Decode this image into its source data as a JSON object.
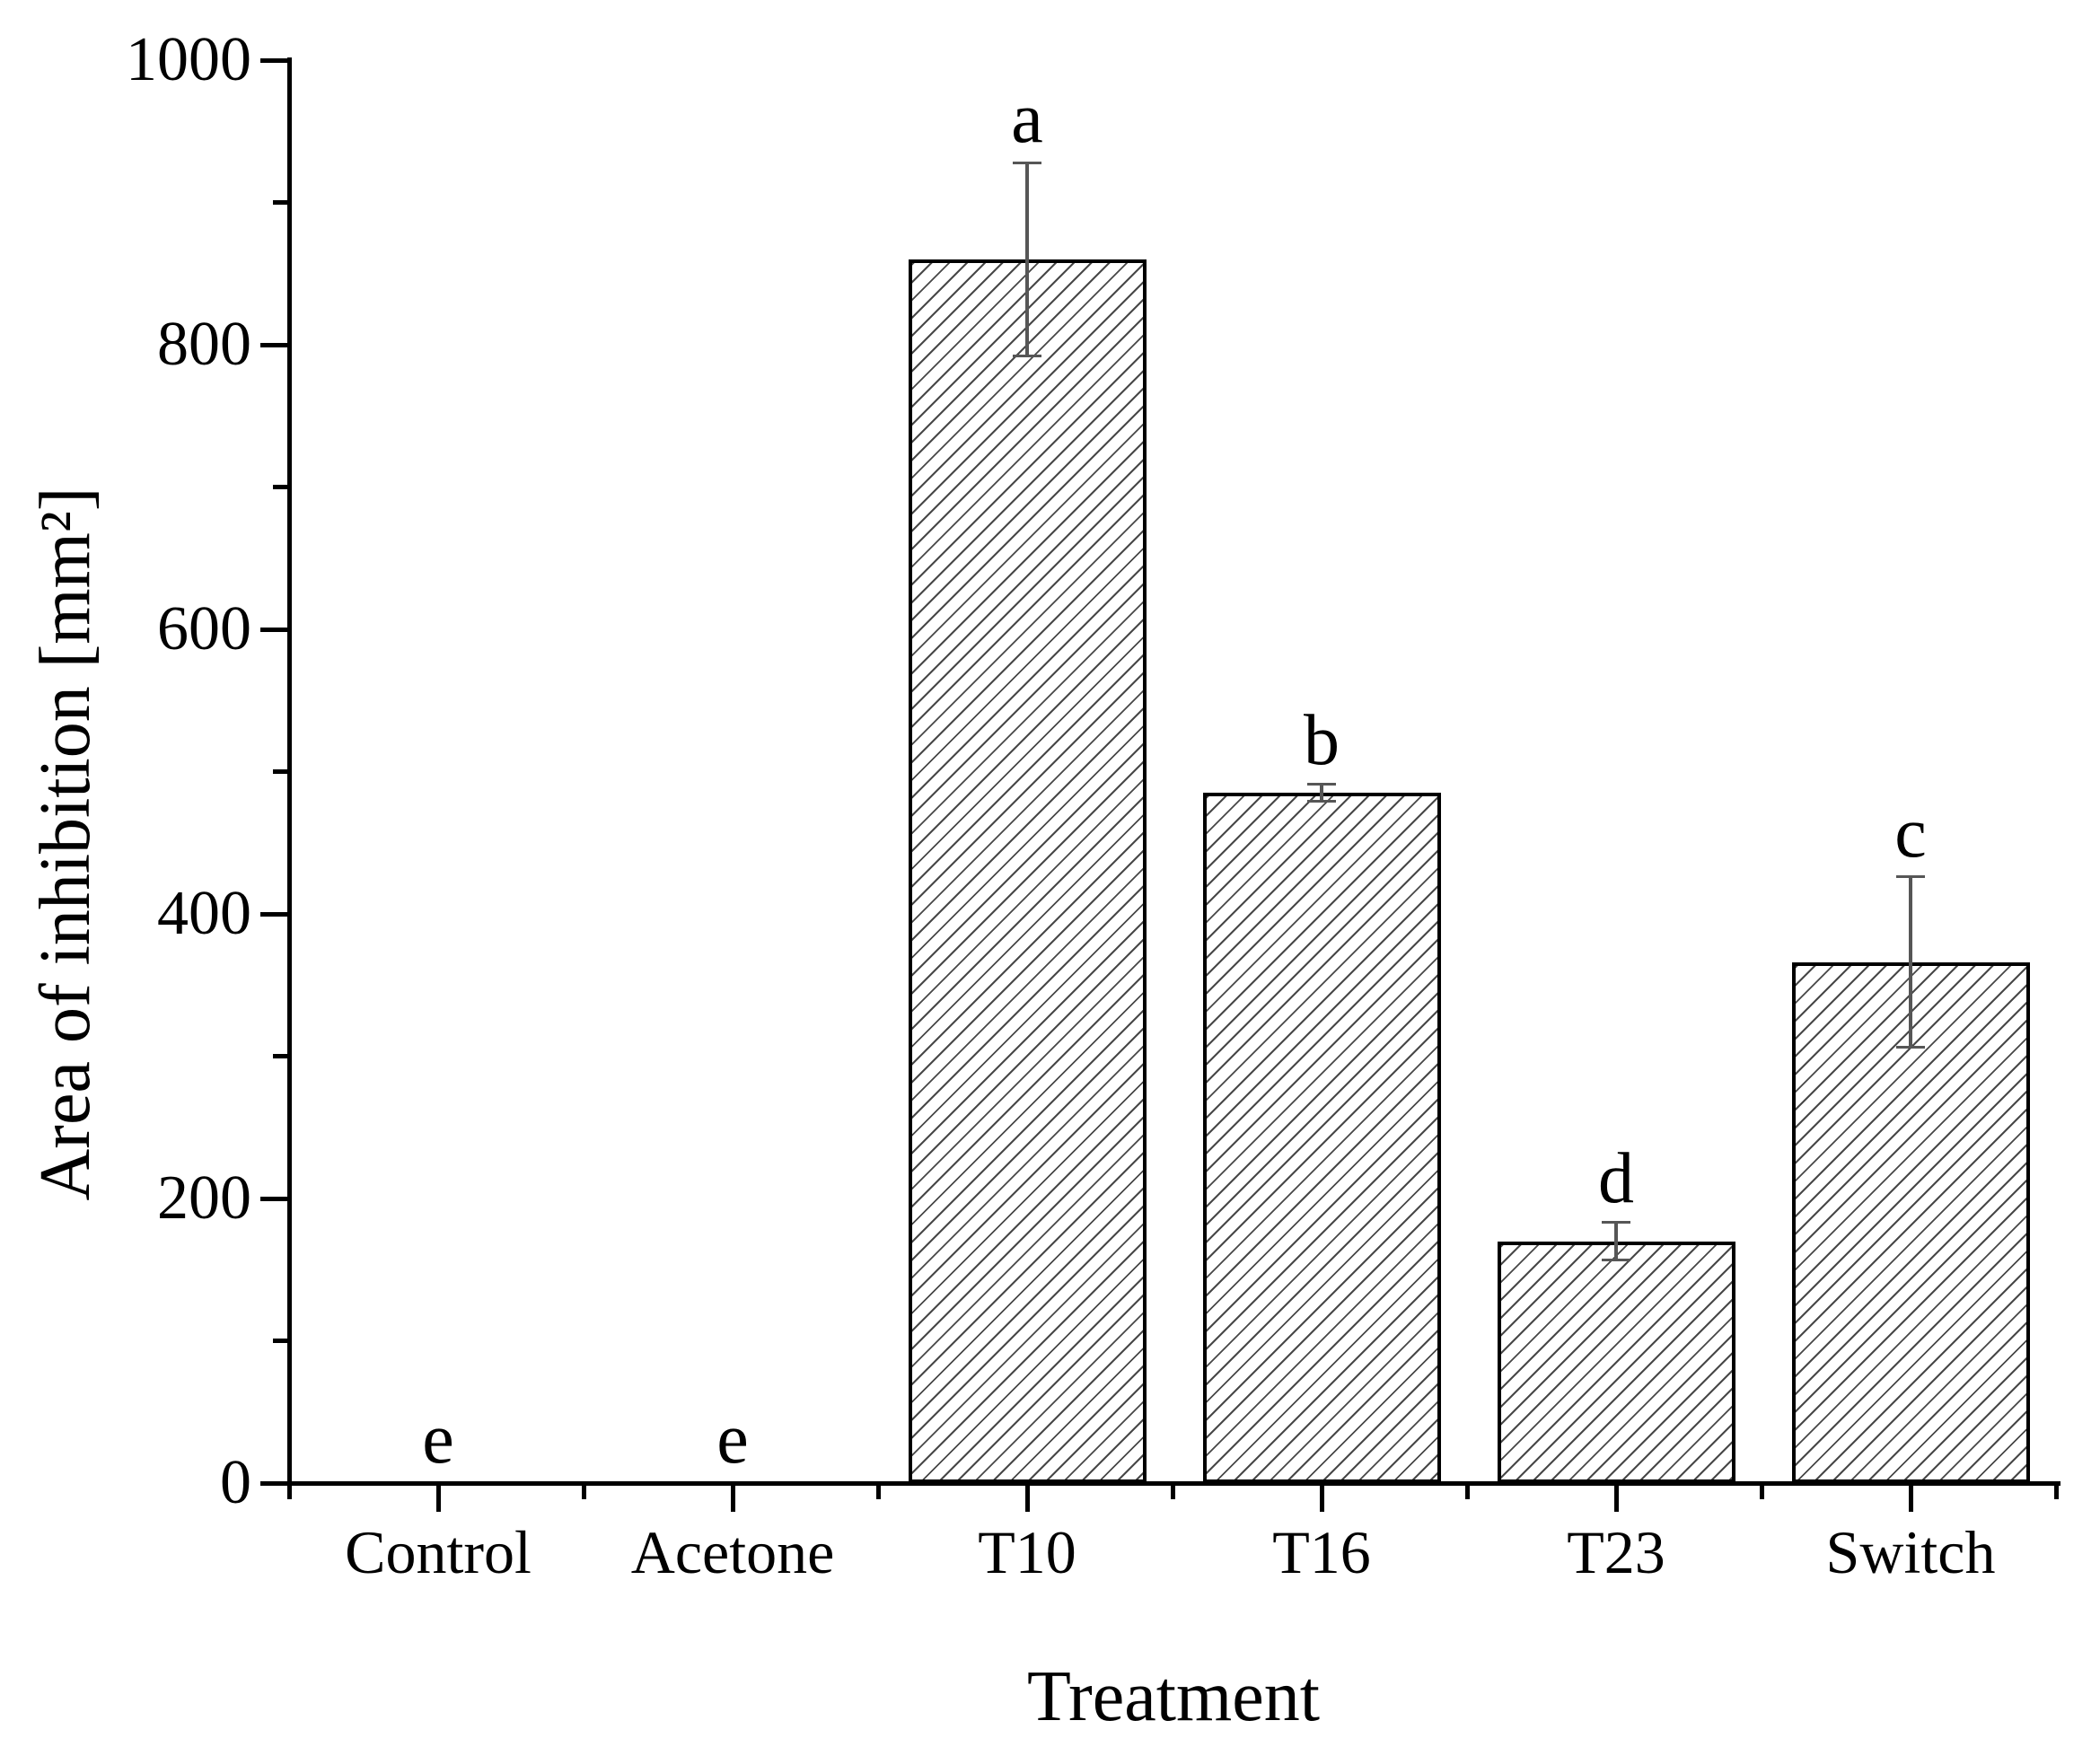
{
  "figure": {
    "background_color": "#ffffff",
    "ink_color": "#000000",
    "error_bar_color": "#565656",
    "hatch_style": "diagonal-forward-slash"
  },
  "chart_data": {
    "type": "bar",
    "title": "",
    "xlabel": "Treatment",
    "ylabel": "Area of inhibition [mm²]",
    "categories": [
      "Control",
      "Acetone",
      "T10",
      "T16",
      "T23",
      "Switch"
    ],
    "values": [
      0,
      0,
      860,
      485,
      170,
      366
    ],
    "errors": [
      0,
      0,
      68,
      6,
      13,
      60
    ],
    "significance_letters": [
      "e",
      "e",
      "a",
      "b",
      "d",
      "c"
    ],
    "ylim": [
      0,
      1000
    ],
    "y_major_ticks": [
      0,
      200,
      400,
      600,
      800,
      1000
    ],
    "y_minor_step": 100,
    "grid": false,
    "legend": null,
    "bar_fill": "white with gray diagonal hatching",
    "bar_edge": "black"
  }
}
